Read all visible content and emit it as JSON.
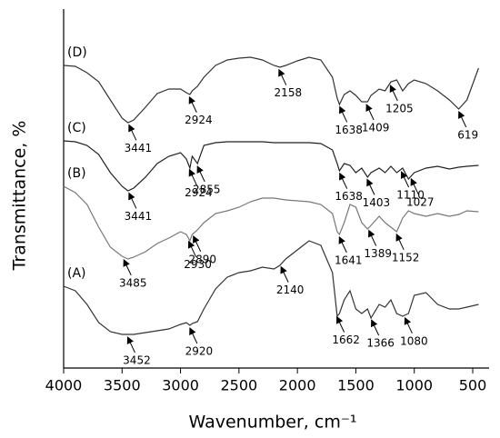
{
  "chart_data": {
    "type": "line",
    "x_label": "Wavenumber, cm⁻¹",
    "y_label": "Transmittance, %",
    "xlim": [
      4000,
      360
    ],
    "ylim": [
      0,
      98.75
    ],
    "xticks": [
      4000,
      3500,
      3000,
      2500,
      2000,
      1500,
      1000,
      500
    ],
    "x": [
      4000,
      3900,
      3800,
      3700,
      3600,
      3500,
      3450,
      3400,
      3300,
      3200,
      3100,
      3000,
      2950,
      2920,
      2900,
      2855,
      2800,
      2700,
      2600,
      2500,
      2400,
      2300,
      2200,
      2150,
      2100,
      2000,
      1900,
      1800,
      1700,
      1660,
      1640,
      1600,
      1550,
      1500,
      1450,
      1400,
      1370,
      1300,
      1250,
      1200,
      1150,
      1100,
      1050,
      1000,
      900,
      800,
      700,
      620,
      550,
      450
    ],
    "series": [
      {
        "name": "(D)",
        "color": "#333333",
        "peaks": [
          3441,
          2924,
          2158,
          1638,
          1409,
          1205,
          619
        ],
        "values": [
          83.25,
          83,
          81.25,
          78.75,
          73.75,
          68.75,
          67.5,
          68.25,
          71.75,
          75.5,
          76.75,
          76.75,
          75.75,
          75.25,
          76.25,
          77.5,
          80,
          83.25,
          84.75,
          85.25,
          85.5,
          84.75,
          83.25,
          82.75,
          83.25,
          84.5,
          85.5,
          84.75,
          80,
          74.25,
          72.5,
          75.25,
          76.25,
          75,
          73.25,
          73.25,
          75,
          76.75,
          76.25,
          78.75,
          79.25,
          76.25,
          78.25,
          79.25,
          78.25,
          76.25,
          73.75,
          71.25,
          73.75,
          82.5
        ]
      },
      {
        "name": "(C)",
        "color": "#222222",
        "peaks": [
          3441,
          2924,
          2855,
          1638,
          1403,
          1110,
          1027
        ],
        "values": [
          62.5,
          62.25,
          61.25,
          58.75,
          53.75,
          50,
          48.75,
          49.5,
          52.5,
          56.25,
          58.25,
          59.25,
          57.5,
          55,
          58.25,
          56.25,
          61.25,
          62,
          62.25,
          62.25,
          62.25,
          62.25,
          62,
          62,
          62,
          62,
          62,
          61.75,
          60,
          56.25,
          54.25,
          56.25,
          55.75,
          53.75,
          55,
          52.5,
          53.75,
          55,
          53.75,
          55.5,
          53.75,
          55,
          52,
          53.75,
          55,
          55.5,
          54.75,
          55.25,
          55.5,
          55.75
        ]
      },
      {
        "name": "(B)",
        "color": "#777777",
        "peaks": [
          3485,
          2930,
          2890,
          1641,
          1389,
          1152
        ],
        "values": [
          50,
          48.25,
          45,
          38.75,
          33.25,
          30.75,
          30,
          30.5,
          32,
          34.25,
          35.75,
          37.5,
          36.75,
          35,
          36.75,
          38,
          40,
          42.5,
          43.25,
          44.25,
          45.75,
          46.75,
          46.75,
          46.5,
          46.25,
          46,
          45.75,
          45,
          42.5,
          37.5,
          36.75,
          40,
          45,
          44.25,
          40,
          38.25,
          39.25,
          41.75,
          40,
          38.75,
          37.5,
          41.25,
          43.25,
          42.5,
          41.75,
          42.5,
          41.75,
          42.25,
          43.25,
          43
        ]
      },
      {
        "name": "(A)",
        "color": "#333333",
        "peaks": [
          3452,
          2920,
          2140,
          1662,
          1366,
          1080
        ],
        "values": [
          22.5,
          21.25,
          17.5,
          12.5,
          10,
          9.25,
          9.25,
          9.25,
          9.75,
          10.25,
          10.75,
          12,
          12.5,
          11.75,
          12.25,
          12.75,
          16.25,
          21.75,
          25,
          26.25,
          26.75,
          27.75,
          27.25,
          28.25,
          30,
          32.5,
          35,
          33.75,
          26.25,
          14.25,
          15,
          18.75,
          21.25,
          16.25,
          15,
          16.25,
          13.75,
          17.5,
          16.75,
          18.75,
          15,
          14.25,
          15,
          20,
          20.75,
          17.5,
          16.25,
          16.25,
          16.75,
          17.5
        ]
      }
    ]
  }
}
